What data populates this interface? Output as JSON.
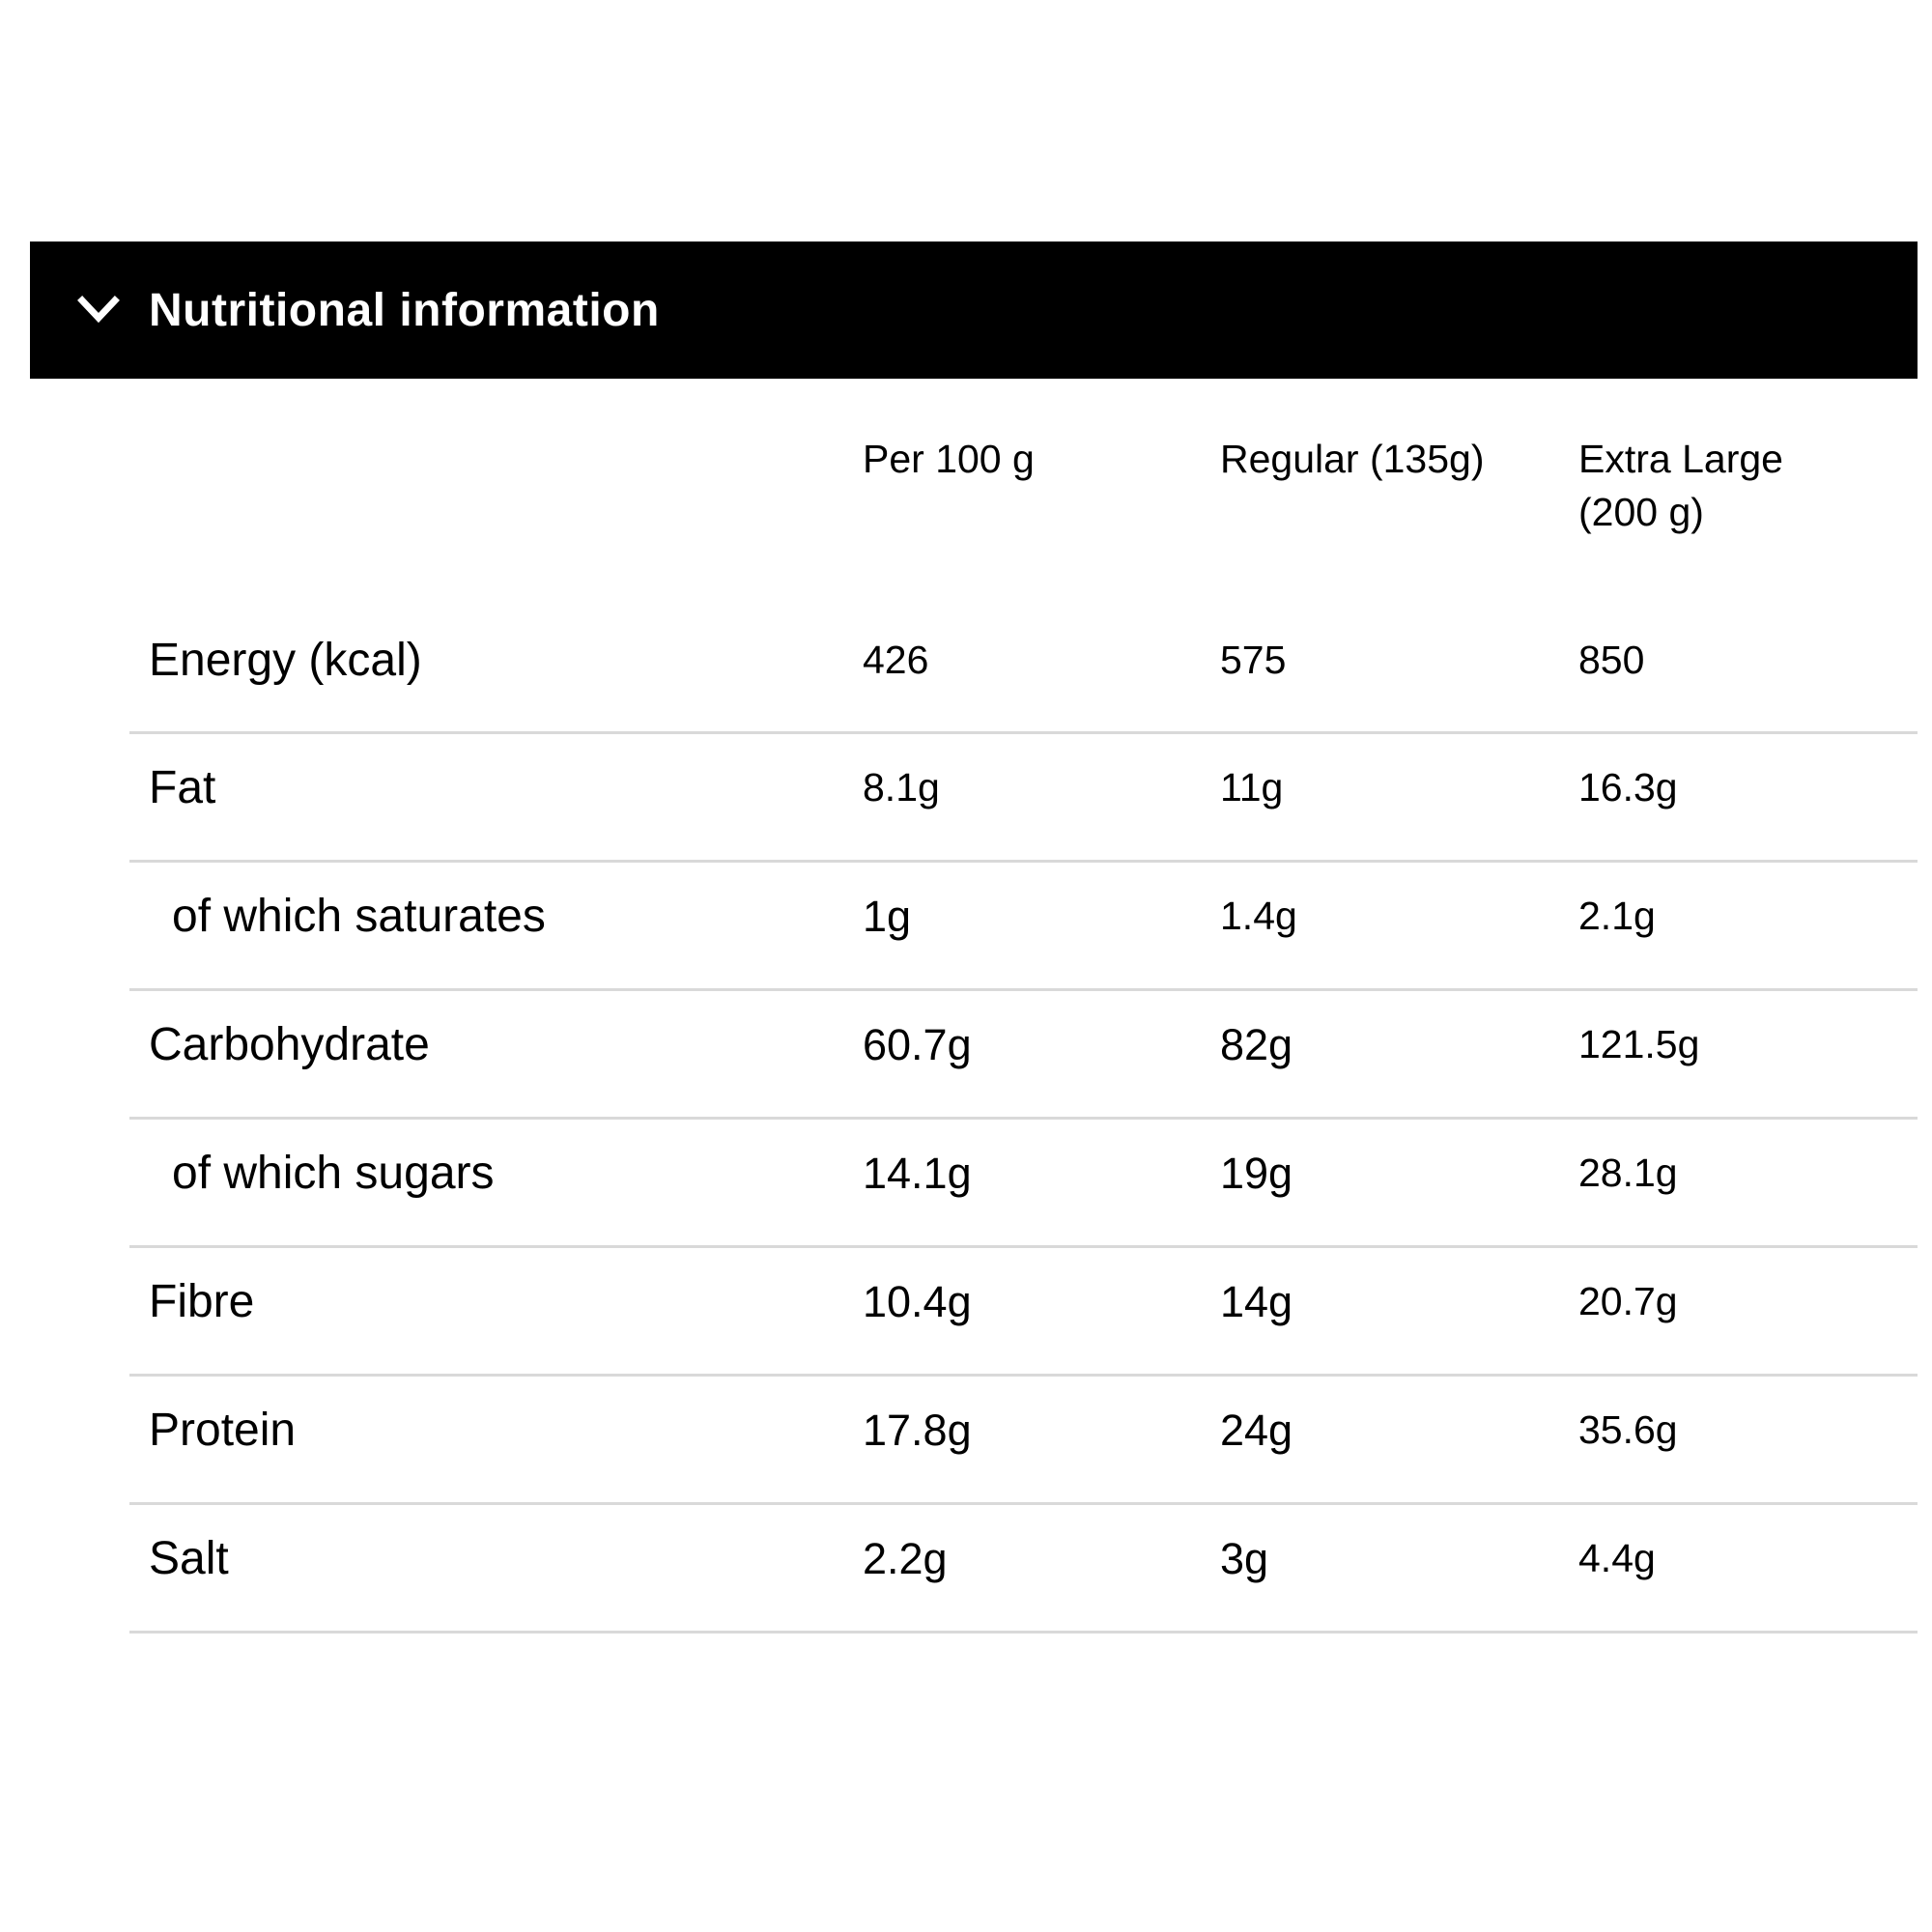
{
  "section": {
    "title": "Nutritional information",
    "icon": "chevron-down-icon"
  },
  "table": {
    "columns": [
      "Per 100 g",
      "Regular (135g)",
      "Extra Large\n(200 g)"
    ],
    "rows": [
      {
        "name": "Energy (kcal)",
        "per100": "426",
        "regular": "575",
        "xl": "850"
      },
      {
        "name": "Fat",
        "per100": "8.1g",
        "regular": "11g",
        "xl": "16.3g"
      },
      {
        "name": "of which saturates",
        "per100": "1g",
        "regular": "1.4g",
        "xl": "2.1g"
      },
      {
        "name": "Carbohydrate",
        "per100": "60.7g",
        "regular": "82g",
        "xl": "121.5g"
      },
      {
        "name": "of which sugars",
        "per100": "14.1g",
        "regular": "19g",
        "xl": "28.1g"
      },
      {
        "name": "Fibre",
        "per100": "10.4g",
        "regular": "14g",
        "xl": "20.7g"
      },
      {
        "name": "Protein",
        "per100": "17.8g",
        "regular": "24g",
        "xl": "35.6g"
      },
      {
        "name": "Salt",
        "per100": "2.2g",
        "regular": "3g",
        "xl": "4.4g"
      }
    ]
  }
}
